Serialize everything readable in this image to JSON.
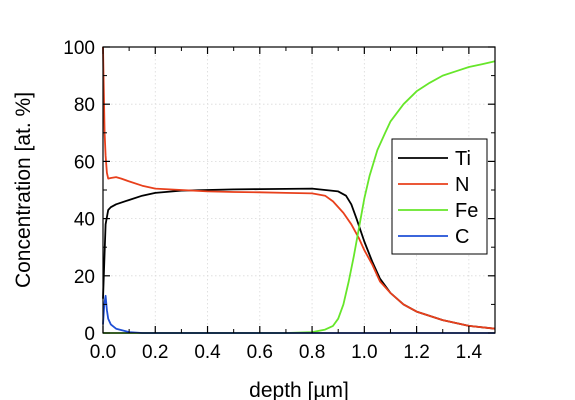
{
  "chart_data": {
    "type": "line",
    "xlabel": "depth [µm]",
    "ylabel": "Concentration [at. %]",
    "xlim": [
      0.0,
      1.5
    ],
    "ylim": [
      0,
      100
    ],
    "x_ticks": [
      0.0,
      0.2,
      0.4,
      0.6,
      0.8,
      1.0,
      1.2,
      1.4
    ],
    "x_tick_labels": [
      "0.0",
      "0.2",
      "0.4",
      "0.6",
      "0.8",
      "1.0",
      "1.2",
      "1.4"
    ],
    "y_ticks": [
      0,
      20,
      40,
      60,
      80,
      100
    ],
    "y_tick_labels": [
      "0",
      "20",
      "40",
      "60",
      "80",
      "100"
    ],
    "grid": true,
    "legend_position": "right",
    "series": [
      {
        "name": "Ti",
        "color": "#000000",
        "x": [
          0.0,
          0.005,
          0.01,
          0.02,
          0.03,
          0.05,
          0.1,
          0.15,
          0.2,
          0.3,
          0.4,
          0.5,
          0.6,
          0.7,
          0.8,
          0.85,
          0.9,
          0.93,
          0.95,
          0.97,
          1.0,
          1.03,
          1.06,
          1.1,
          1.15,
          1.2,
          1.3,
          1.4,
          1.5
        ],
        "y": [
          12,
          25,
          38,
          43,
          44,
          45,
          46.5,
          48,
          49,
          49.8,
          50,
          50.2,
          50.3,
          50.4,
          50.5,
          50,
          49.5,
          48,
          45,
          40,
          32,
          25,
          19,
          14,
          10,
          7.5,
          4.5,
          2.5,
          1.5
        ]
      },
      {
        "name": "N",
        "color": "#e8401c",
        "x": [
          0.0,
          0.003,
          0.006,
          0.01,
          0.015,
          0.02,
          0.03,
          0.05,
          0.07,
          0.1,
          0.15,
          0.2,
          0.3,
          0.4,
          0.5,
          0.6,
          0.7,
          0.8,
          0.85,
          0.88,
          0.92,
          0.95,
          0.98,
          1.0,
          1.03,
          1.06,
          1.1,
          1.15,
          1.2,
          1.3,
          1.4,
          1.5
        ],
        "y": [
          100,
          85,
          70,
          62,
          56,
          54,
          54.2,
          54.5,
          54,
          53,
          51.5,
          50.5,
          50,
          49.5,
          49.3,
          49.2,
          49,
          48.8,
          48,
          46,
          42,
          38,
          33,
          29,
          24,
          18,
          14,
          10,
          7.5,
          4.5,
          2.5,
          1.5
        ]
      },
      {
        "name": "Fe",
        "color": "#66e62a",
        "x": [
          0.0,
          0.6,
          0.7,
          0.8,
          0.85,
          0.88,
          0.9,
          0.92,
          0.94,
          0.96,
          0.98,
          1.0,
          1.02,
          1.05,
          1.08,
          1.1,
          1.15,
          1.2,
          1.25,
          1.3,
          1.35,
          1.4,
          1.45,
          1.5
        ],
        "y": [
          0,
          0,
          0,
          0.3,
          1.2,
          2.5,
          5,
          10,
          18,
          27,
          37,
          47,
          55,
          64,
          70,
          74,
          80,
          84.5,
          87.5,
          90,
          91.5,
          93,
          94,
          95
        ]
      },
      {
        "name": "C",
        "color": "#1f4fd6",
        "x": [
          0.0,
          0.005,
          0.01,
          0.015,
          0.02,
          0.03,
          0.05,
          0.08,
          0.1,
          0.15,
          0.3,
          1.5
        ],
        "y": [
          3,
          10,
          13,
          8,
          5,
          3,
          1.5,
          0.8,
          0.3,
          0,
          0,
          0
        ]
      }
    ]
  }
}
